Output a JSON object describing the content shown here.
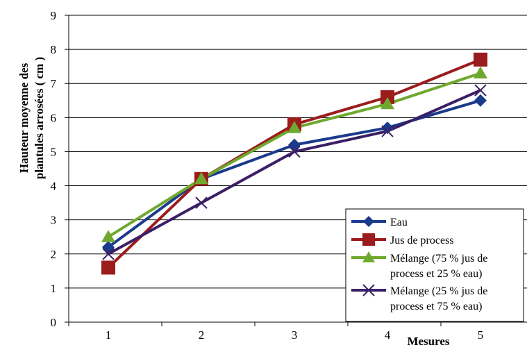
{
  "chart_data": {
    "type": "line",
    "title": "",
    "xlabel": "Mesures",
    "ylabel_lines": [
      "Hauteur moyenne des",
      "plantules arrosées ( cm )"
    ],
    "x": [
      1,
      2,
      3,
      4,
      5
    ],
    "x_ticks": [
      "1",
      "2",
      "3",
      "4",
      "5"
    ],
    "ylim": [
      0,
      9
    ],
    "y_ticks": [
      "0",
      "1",
      "2",
      "3",
      "4",
      "5",
      "6",
      "7",
      "8",
      "9"
    ],
    "grid": "horizontal",
    "legend_position": "bottom-right",
    "series": [
      {
        "name": "Eau",
        "legend_lines": [
          "Eau"
        ],
        "color": "#1a3b8c",
        "marker": "diamond",
        "values": [
          2.2,
          4.2,
          5.2,
          5.7,
          6.5
        ]
      },
      {
        "name": "Jus de process",
        "legend_lines": [
          "Jus de process"
        ],
        "color": "#9b1c1c",
        "marker": "square",
        "values": [
          1.6,
          4.2,
          5.8,
          6.6,
          7.7
        ]
      },
      {
        "name": "Mélange (75 % jus de process et 25 % eau)",
        "legend_lines": [
          "Mélange (75 % jus de",
          "process et 25 % eau)"
        ],
        "color": "#6fa82f",
        "marker": "triangle",
        "values": [
          2.5,
          4.2,
          5.7,
          6.4,
          7.3
        ]
      },
      {
        "name": "Mélange (25 % jus de process et 75 % eau)",
        "legend_lines": [
          "Mélange (25 % jus de",
          "process et 75 % eau)"
        ],
        "color": "#3b1f66",
        "marker": "x",
        "values": [
          2.0,
          3.5,
          5.0,
          5.6,
          6.8
        ]
      }
    ]
  }
}
